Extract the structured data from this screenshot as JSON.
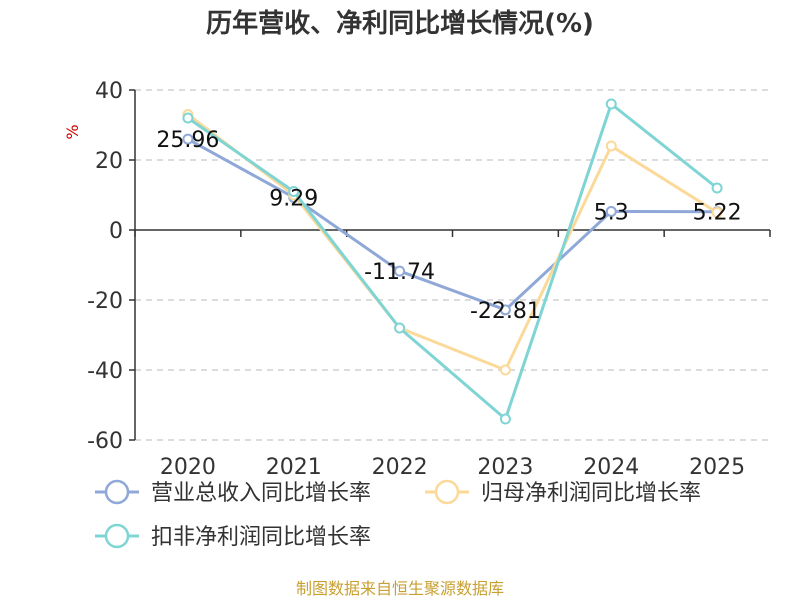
{
  "chart_data": {
    "type": "line",
    "title": "历年营收、净利同比增长情况(%)",
    "ylabel": "%",
    "categories": [
      "2020",
      "2021",
      "2022",
      "2023",
      "2024",
      "2025"
    ],
    "ylim": [
      -60,
      40
    ],
    "yticks": [
      40,
      20,
      0,
      -20,
      -40,
      -60
    ],
    "grid": true,
    "legend_position": "bottom",
    "series": [
      {
        "name": "营业总收入同比增长率",
        "color": "#8fa8d8",
        "values": [
          25.96,
          9.29,
          -11.74,
          -22.81,
          5.3,
          5.22
        ],
        "labels": [
          "25.96",
          "9.29",
          "-11.74",
          "-22.81",
          "5.3",
          "5.22"
        ]
      },
      {
        "name": "归母净利润同比增长率",
        "color": "#fbd999",
        "values": [
          33,
          10,
          -28,
          -40,
          24,
          5
        ]
      },
      {
        "name": "扣非净利润同比增长率",
        "color": "#7fd4d4",
        "values": [
          32,
          11,
          -28,
          -54,
          36,
          12
        ]
      }
    ]
  },
  "source": "制图数据来自恒生聚源数据库"
}
